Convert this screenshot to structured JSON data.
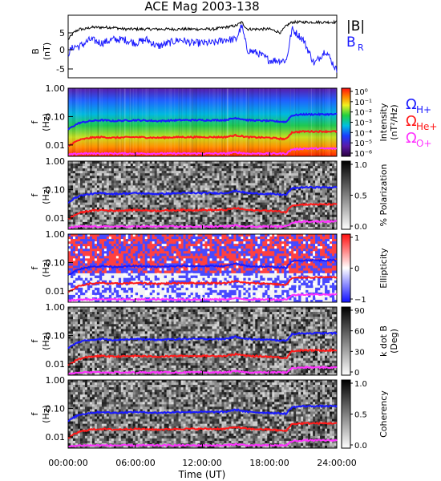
{
  "title": "ACE Mag 2003-138",
  "colors": {
    "black": "#000000",
    "blue": "#1a1aff",
    "red": "#ff1a1a",
    "magenta": "#ff33ff"
  },
  "x_axis": {
    "title": "Time (UT)",
    "ticks": [
      "00:00:00",
      "06:00:00",
      "12:00:00",
      "18:00:00",
      "24:00:00"
    ],
    "range_hours": [
      0,
      24
    ]
  },
  "panel_b": {
    "ylabel_1": "B",
    "ylabel_2": "(nT)",
    "yticks": [
      "5",
      "0",
      "-5"
    ],
    "legend": [
      "|B|",
      "B"
    ],
    "legend_sub": "R"
  },
  "freq_axis": {
    "ylabel_1": "f",
    "ylabel_2": "(Hz)",
    "yticks": [
      "1.00",
      "0.10",
      "0.01"
    ]
  },
  "gyro_legend": {
    "omega": "Ω",
    "subs": [
      "H+",
      "He+",
      "O+"
    ]
  },
  "spectrogram_panels": [
    {
      "kind": "intensity",
      "colorbar_label_1": "Intensity",
      "colorbar_label_2": "(nT²/Hz)",
      "colorbar_ticks": [
        "10⁰",
        "10⁻¹",
        "10⁻²",
        "10⁻³",
        "10⁻⁴",
        "10⁻⁵",
        "10⁻⁶"
      ]
    },
    {
      "kind": "polarization",
      "colorbar_label_1": "% Polarization",
      "colorbar_label_2": "",
      "colorbar_ticks": [
        "1.0",
        "0.5",
        "0.0"
      ]
    },
    {
      "kind": "ellipticity",
      "colorbar_label_1": "Ellipticity",
      "colorbar_label_2": "",
      "colorbar_ticks": [
        "1",
        "0",
        "−1"
      ]
    },
    {
      "kind": "kdotb",
      "colorbar_label_1": "k dot B",
      "colorbar_label_2": "(Deg)",
      "colorbar_ticks": [
        "90",
        "60",
        "30",
        "0"
      ]
    },
    {
      "kind": "coherency",
      "colorbar_label_1": "Coherency",
      "colorbar_label_2": "",
      "colorbar_ticks": [
        "1.0",
        "0.5",
        "0.0"
      ]
    }
  ],
  "chart_data": {
    "type": "line",
    "title": "ACE Mag 2003-138",
    "xlabel": "Time (UT)",
    "panels": [
      {
        "name": "B",
        "ylabel": "B (nT)",
        "ylim": [
          -8,
          10
        ],
        "x_hours": [
          0,
          0.5,
          1,
          1.5,
          2,
          3,
          4,
          5,
          6,
          7,
          8,
          9,
          10,
          11,
          12,
          13,
          14,
          15,
          15.5,
          16,
          17,
          18,
          19,
          19.5,
          20,
          21,
          22,
          23,
          24
        ],
        "series": [
          {
            "name": "|B|",
            "values": [
              3,
              5,
              6,
              6,
              6.5,
              6.5,
              6.5,
              6,
              6,
              6,
              6,
              6,
              6,
              6,
              6,
              6,
              6.5,
              7,
              8,
              6,
              6,
              6,
              5,
              7,
              8,
              8,
              8,
              8,
              8
            ]
          },
          {
            "name": "B_R",
            "values": [
              -1,
              1,
              1,
              2,
              3,
              2,
              3,
              3,
              2,
              3,
              1,
              2,
              3,
              2,
              2,
              2,
              3,
              3,
              7,
              0,
              -1,
              -3,
              -3,
              -3,
              6,
              3,
              -4,
              0,
              -6
            ]
          }
        ]
      },
      {
        "name": "gyrofrequencies",
        "ylabel": "f (Hz)",
        "ylim": [
          0.004,
          1.0
        ],
        "x_hours": [
          0,
          1,
          2,
          3,
          4,
          6,
          8,
          10,
          12,
          14,
          15,
          16,
          18,
          19.5,
          20,
          21,
          22,
          24
        ],
        "series": [
          {
            "name": "H+",
            "values": [
              0.035,
              0.06,
              0.07,
              0.075,
              0.07,
              0.075,
              0.07,
              0.075,
              0.075,
              0.075,
              0.09,
              0.075,
              0.07,
              0.065,
              0.11,
              0.12,
              0.12,
              0.12
            ]
          },
          {
            "name": "He+",
            "values": [
              0.009,
              0.015,
              0.018,
              0.019,
              0.018,
              0.019,
              0.018,
              0.019,
              0.019,
              0.019,
              0.022,
              0.019,
              0.018,
              0.016,
              0.028,
              0.03,
              0.03,
              0.03
            ]
          },
          {
            "name": "O+",
            "values": [
              0.0045,
              0.005,
              0.005,
              0.005,
              0.005,
              0.005,
              0.005,
              0.005,
              0.005,
              0.005,
              0.0055,
              0.005,
              0.005,
              0.005,
              0.007,
              0.0075,
              0.0075,
              0.0075
            ]
          }
        ]
      }
    ]
  }
}
